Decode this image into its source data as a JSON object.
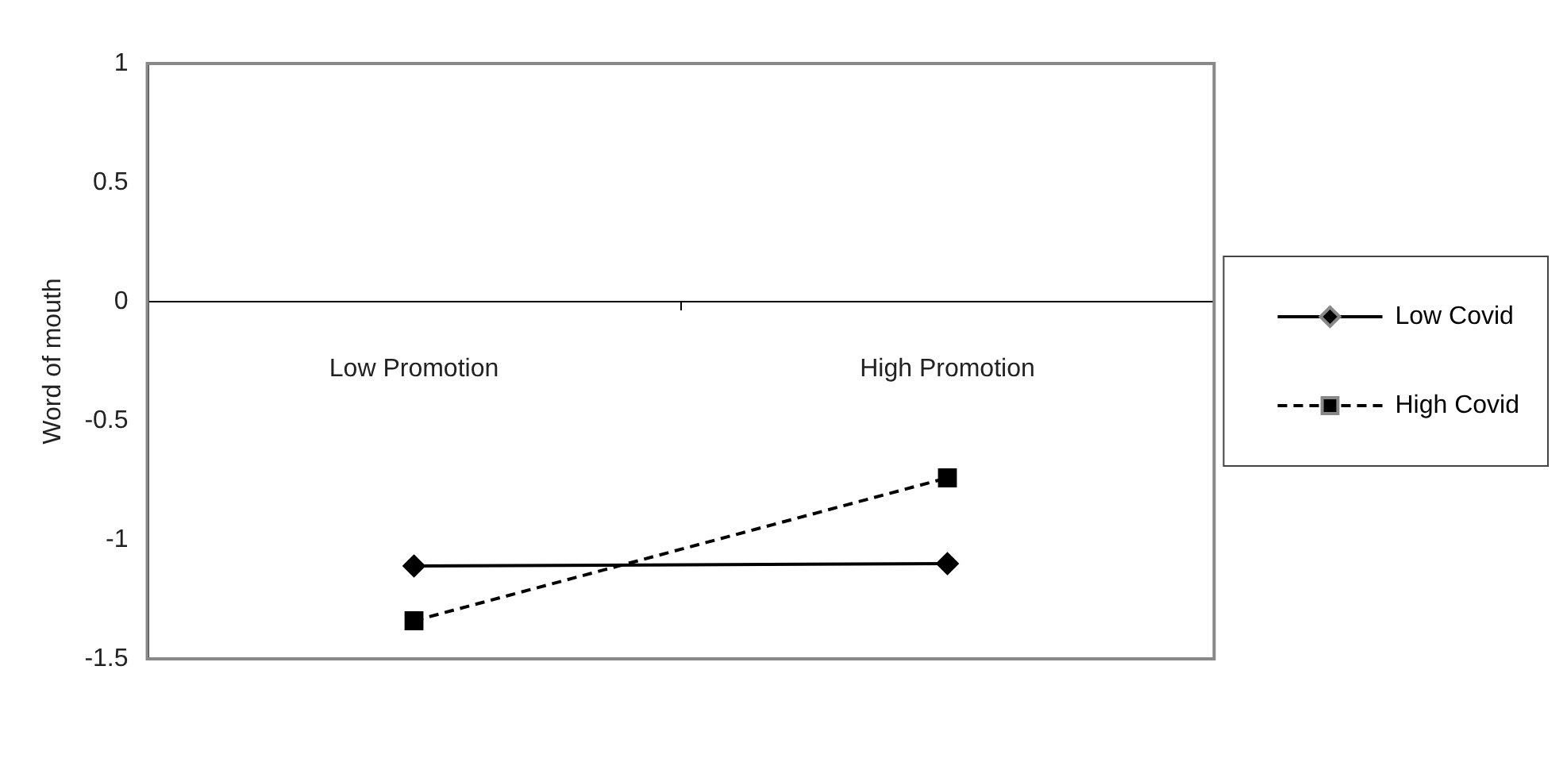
{
  "chart_data": {
    "type": "line",
    "ylabel": "Word of mouth",
    "categories": [
      "Low Promotion",
      "High Promotion"
    ],
    "series": [
      {
        "name": "Low Covid",
        "color": "#000000",
        "marker": "diamond",
        "line_style": "solid",
        "values": [
          -1.11,
          -1.1
        ]
      },
      {
        "name": "High Covid",
        "color": "#000000",
        "marker": "square",
        "line_style": "dashed",
        "values": [
          -1.34,
          -0.74
        ]
      }
    ],
    "ylim": [
      -1.5,
      1
    ],
    "yticks": [
      -1.5,
      -1,
      -0.5,
      0,
      0.5,
      1
    ],
    "grid": false,
    "legend": "right"
  }
}
